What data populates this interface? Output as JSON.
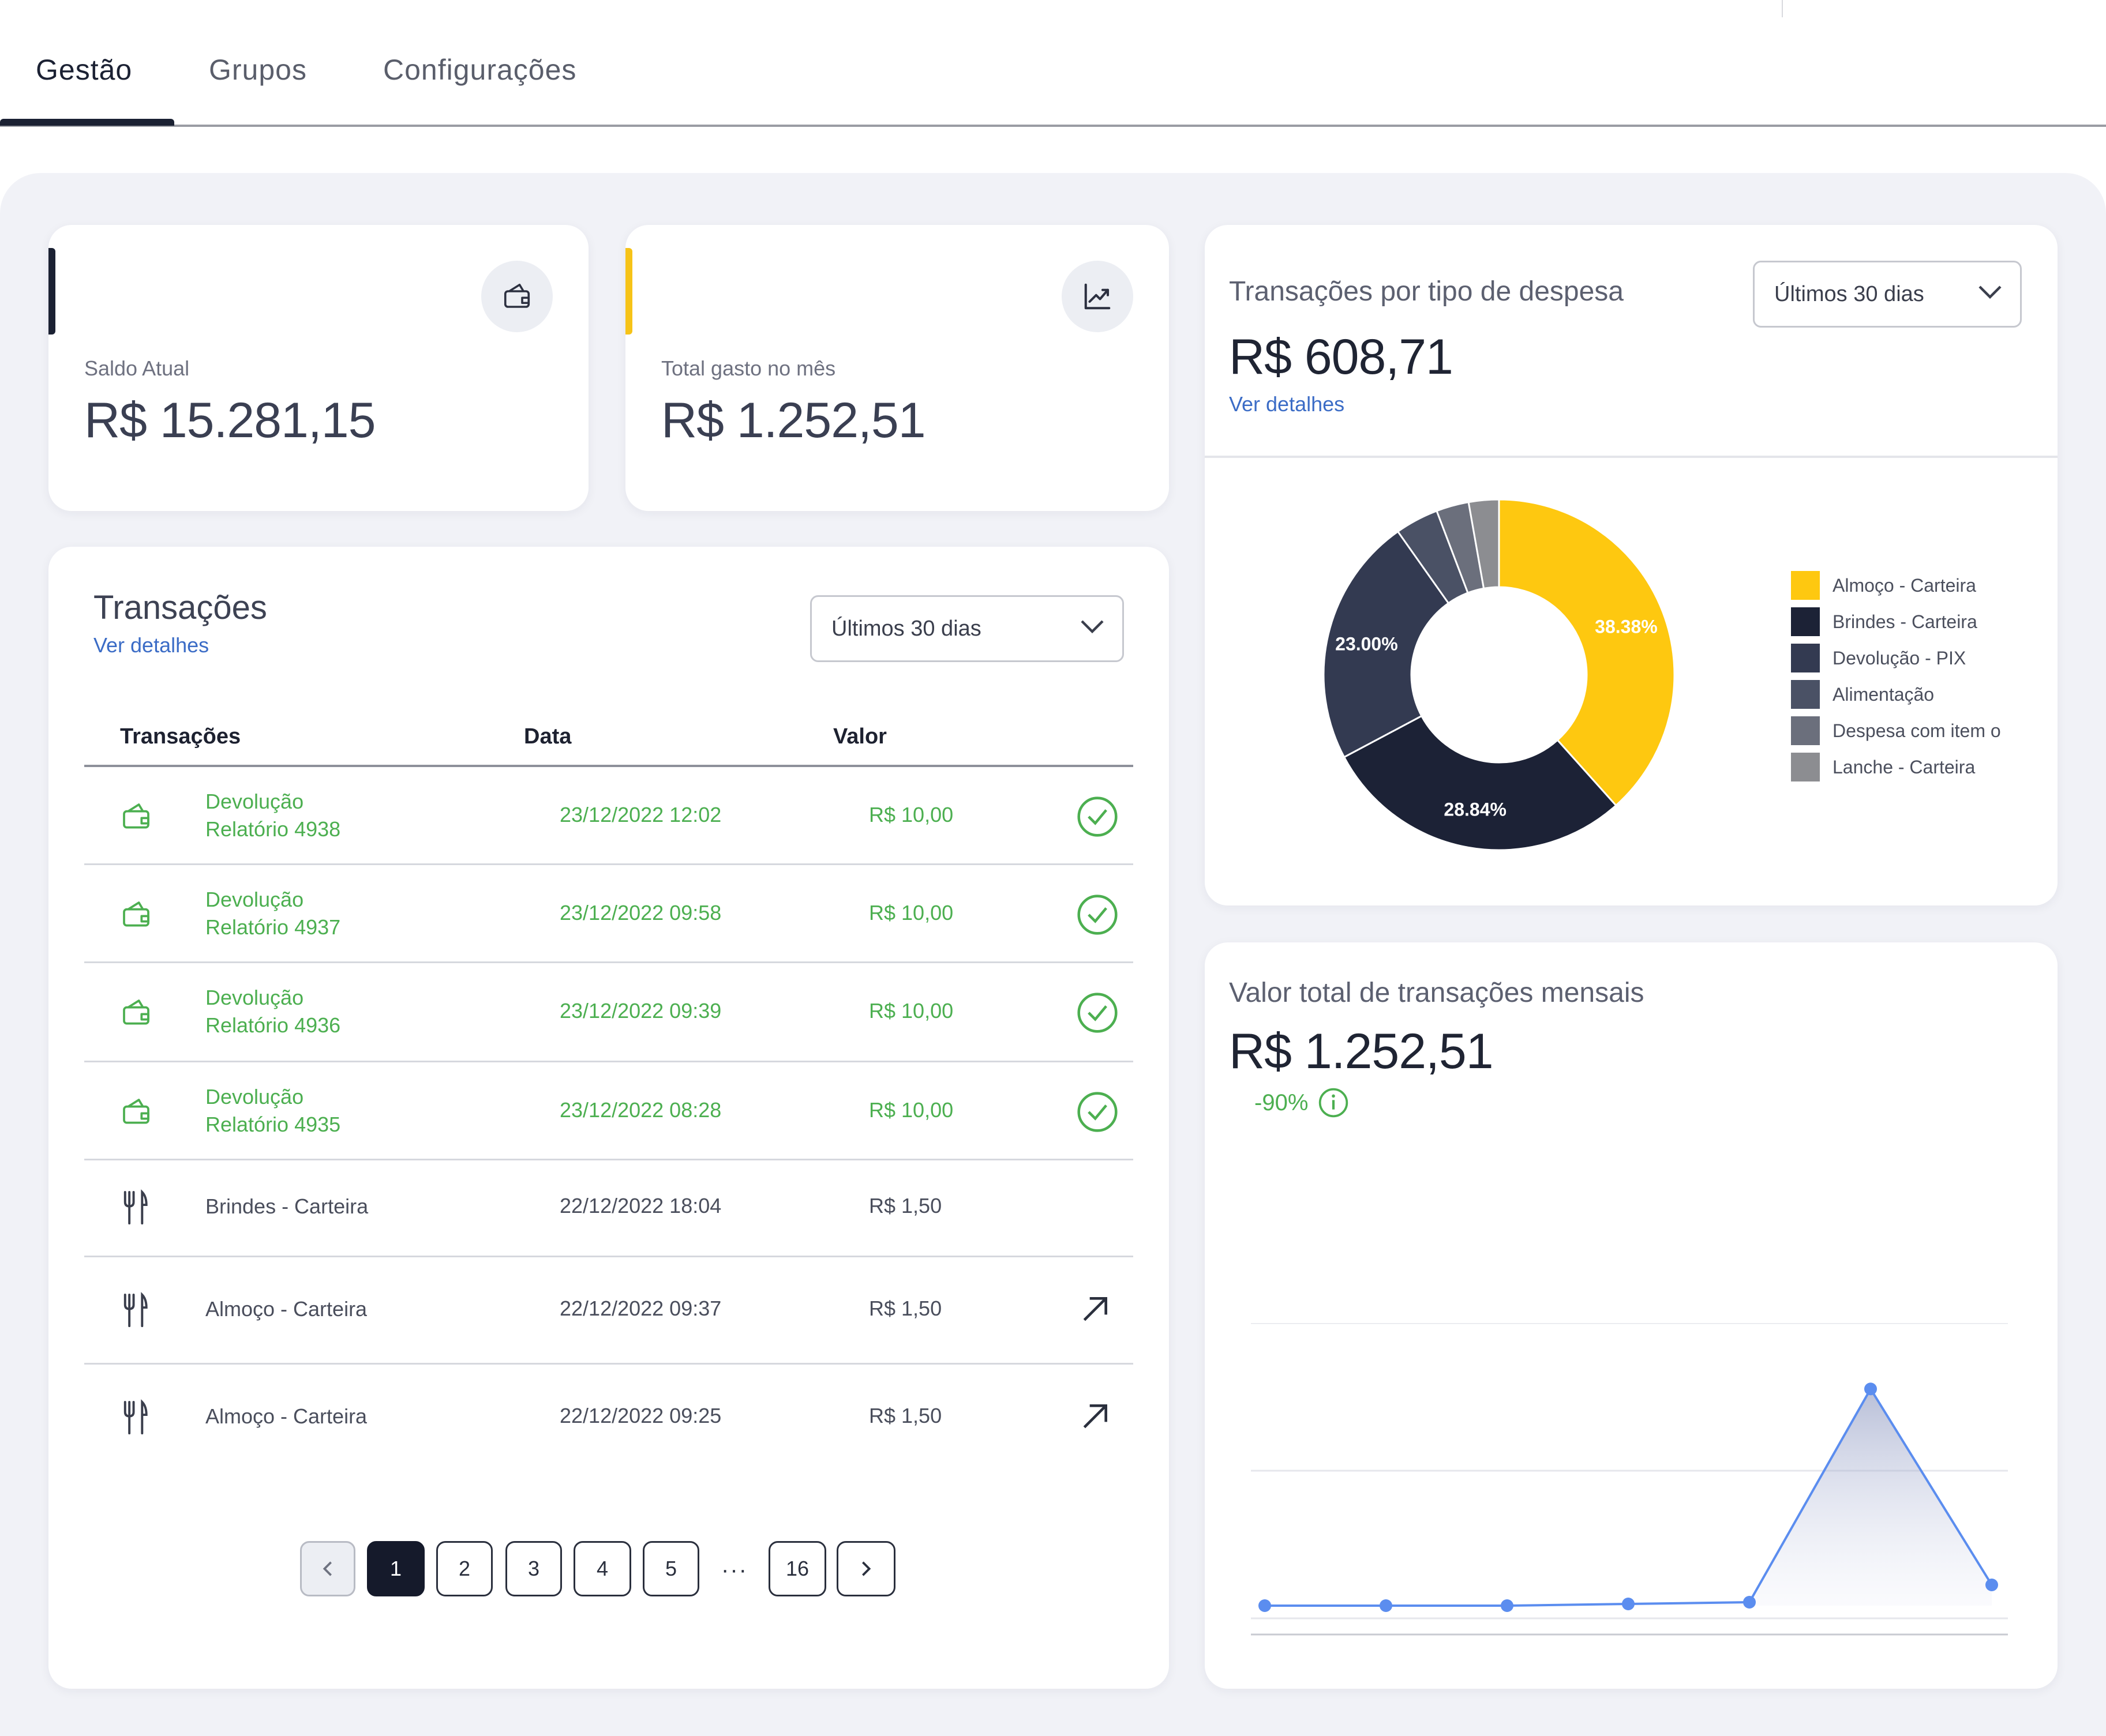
{
  "tabs": [
    {
      "label": "Gestão",
      "active": true
    },
    {
      "label": "Grupos",
      "active": false
    },
    {
      "label": "Configurações",
      "active": false
    }
  ],
  "stats": [
    {
      "label": "Saldo Atual",
      "value": "R$ 15.281,15",
      "accent": "#1b2133",
      "icon": "wallet-icon"
    },
    {
      "label": "Total gasto no mês",
      "value": "R$ 1.252,51",
      "accent": "#f6c318",
      "icon": "trend-up-chart-icon"
    }
  ],
  "transactions": {
    "title": "Transações",
    "link": "Ver detalhes",
    "filter": "Últimos 30 dias",
    "columns": {
      "name": "Transações",
      "date": "Data",
      "value": "Valor"
    },
    "rows": [
      {
        "name": "Devolução",
        "sub": "Relatório 4938",
        "date": "23/12/2022 12:02",
        "value": "R$ 10,00",
        "type": "refund",
        "status": "check"
      },
      {
        "name": "Devolução",
        "sub": "Relatório 4937",
        "date": "23/12/2022 09:58",
        "value": "R$ 10,00",
        "type": "refund",
        "status": "check"
      },
      {
        "name": "Devolução",
        "sub": "Relatório 4936",
        "date": "23/12/2022 09:39",
        "value": "R$ 10,00",
        "type": "refund",
        "status": "check"
      },
      {
        "name": "Devolução",
        "sub": "Relatório 4935",
        "date": "23/12/2022 08:28",
        "value": "R$ 10,00",
        "type": "refund",
        "status": "check"
      },
      {
        "name": "Brindes - Carteira",
        "sub": "",
        "date": "22/12/2022 18:04",
        "value": "R$ 1,50",
        "type": "food",
        "status": "none"
      },
      {
        "name": "Almoço - Carteira",
        "sub": "",
        "date": "22/12/2022 09:37",
        "value": "R$ 1,50",
        "type": "food",
        "status": "arrow"
      },
      {
        "name": "Almoço - Carteira",
        "sub": "",
        "date": "22/12/2022 09:25",
        "value": "R$ 1,50",
        "type": "food",
        "status": "arrow"
      }
    ],
    "pagination": {
      "pages": [
        "1",
        "2",
        "3",
        "4",
        "5"
      ],
      "ellipsis": "···",
      "last": "16",
      "current": "1"
    }
  },
  "expense_card": {
    "title": "Transações por tipo de despesa",
    "total": "R$ 608,71",
    "link": "Ver detalhes",
    "filter": "Últimos 30 dias"
  },
  "monthly_card": {
    "title": "Valor total de transações mensais",
    "total": "R$ 1.252,51",
    "delta": "-90%"
  },
  "colors": {
    "green": "#4caf50",
    "link": "#3b6cc6",
    "line": "#5b8def"
  },
  "chart_data": [
    {
      "type": "pie",
      "title": "Transações por tipo de despesa",
      "labels": [
        "Almoço - Carteira",
        "Brindes - Carteira",
        "Devolução - PIX",
        "Alimentação",
        "Despesa com item o",
        "Lanche - Carteira"
      ],
      "values": [
        38.38,
        28.84,
        23.0,
        4.0,
        3.0,
        2.78
      ],
      "data_labels": [
        "38.38%",
        "28.84%",
        "23.00%",
        "",
        "",
        ""
      ],
      "colors": [
        "#fec810",
        "#1c2236",
        "#333a51",
        "#4a5165",
        "#6b6f7c",
        "#8c8d91"
      ],
      "donut": true,
      "legend": "right"
    },
    {
      "type": "area",
      "title": "Valor total de transações mensais",
      "x": [
        1,
        2,
        3,
        4,
        5,
        6,
        7
      ],
      "values": [
        0,
        0,
        0,
        10,
        20,
        1252.51,
        120
      ],
      "ylim": [
        0,
        1400
      ],
      "grid": true
    }
  ]
}
